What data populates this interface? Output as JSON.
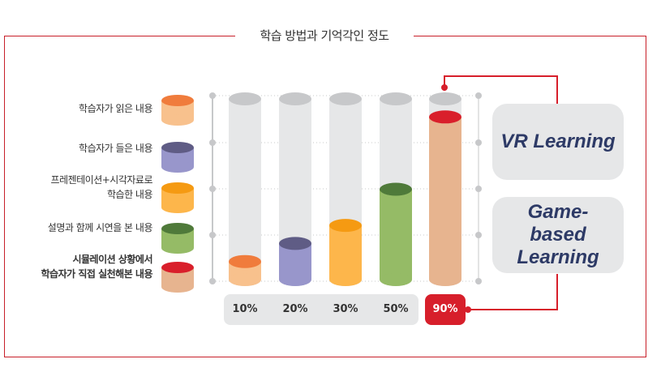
{
  "title": "학습 방법과 기억각인 정도",
  "colors": {
    "frame_red": "#c8202a",
    "guide_gray": "#c7c8ca",
    "pill_bg": "#e6e7e8",
    "pill_text": "#2d3a66",
    "highlight_red": "#d71f2b"
  },
  "legend": [
    {
      "lines": [
        "학습자가 읽은 내용"
      ],
      "body": "#f8c18d",
      "top": "#f07c3c",
      "bold": false
    },
    {
      "lines": [
        "학습자가 들은 내용"
      ],
      "body": "#9896cb",
      "top": "#5f5c85",
      "bold": false
    },
    {
      "lines": [
        "프레젠테이션+시각자료로",
        "학습한 내용"
      ],
      "body": "#fdb64b",
      "top": "#f59a12",
      "bold": false
    },
    {
      "lines": [
        "설명과 함께 시연을 본 내용"
      ],
      "body": "#95bb66",
      "top": "#4f7a3a",
      "bold": false
    },
    {
      "lines": [
        "시뮬레이션 상황에서",
        "학습자가 직접 실천해본 내용"
      ],
      "body": "#e7b48f",
      "top": "#d91f2b",
      "bold": true
    }
  ],
  "pills": [
    {
      "label": "VR Learning"
    },
    {
      "label": "Game-based Learning"
    }
  ],
  "chart_data": {
    "type": "bar",
    "title": "학습 방법과 기억각인 정도",
    "categories": [
      "학습자가 읽은 내용",
      "학습자가 들은 내용",
      "프레젠테이션+시각자료로 학습한 내용",
      "설명과 함께 시연을 본 내용",
      "시뮬레이션 상황에서 학습자가 직접 실천해본 내용"
    ],
    "values": [
      10,
      20,
      30,
      50,
      90
    ],
    "value_labels": [
      "10%",
      "20%",
      "30%",
      "50%",
      "90%"
    ],
    "ylim": [
      0,
      100
    ],
    "grid": true,
    "bar_colors": [
      "#f8c18d",
      "#9896cb",
      "#fdb64b",
      "#95bb66",
      "#e7b48f"
    ],
    "top_colors": [
      "#f07c3c",
      "#5f5c85",
      "#f59a12",
      "#4f7a3a",
      "#d91f2b"
    ],
    "highlighted_index": 4
  }
}
